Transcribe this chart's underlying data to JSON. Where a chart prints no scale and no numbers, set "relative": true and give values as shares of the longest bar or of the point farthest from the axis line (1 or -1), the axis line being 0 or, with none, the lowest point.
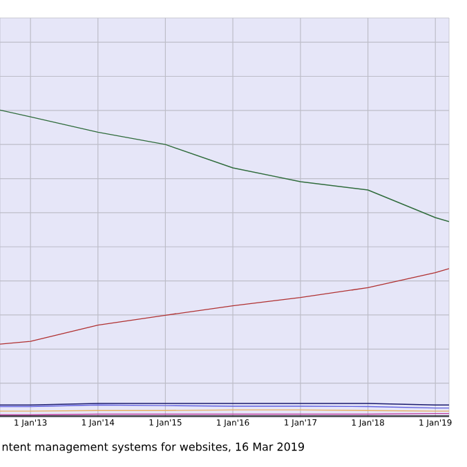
{
  "chart_data": {
    "type": "line",
    "relative": true,
    "grid": true,
    "tick_labels": "x",
    "marker": "none",
    "line_style": "solid",
    "x": [
      "2012-07-20",
      "2013-01-01",
      "2014-01-01",
      "2015-01-01",
      "2016-01-01",
      "2017-01-01",
      "2018-01-01",
      "2019-01-01",
      "2019-03-16"
    ],
    "xlim": [
      "2012-07-20",
      "2019-03-16"
    ],
    "xticks": [
      {
        "value": "2013-01-01",
        "label": "1 Jan'13"
      },
      {
        "value": "2014-01-01",
        "label": "1 Jan'14"
      },
      {
        "value": "2015-01-01",
        "label": "1 Jan'15"
      },
      {
        "value": "2016-01-01",
        "label": "1 Jan'16"
      },
      {
        "value": "2017-01-01",
        "label": "1 Jan'17"
      },
      {
        "value": "2018-01-01",
        "label": "1 Jan'18"
      },
      {
        "value": "2019-01-01",
        "label": "1 Jan'19"
      }
    ],
    "series": [
      {
        "color": "#2e6b3a",
        "values": [
          1,
          0.978,
          0.928,
          0.888,
          0.812,
          0.767,
          0.74,
          0.65,
          0.637
        ]
      },
      {
        "color": "#b03030",
        "values": [
          0.238,
          0.247,
          0.3,
          0.332,
          0.363,
          0.39,
          0.422,
          0.471,
          0.484
        ]
      },
      {
        "color": "#1a1a6e",
        "values": [
          0.04,
          0.04,
          0.045,
          0.045,
          0.045,
          0.045,
          0.045,
          0.04,
          0.04
        ]
      },
      {
        "color": "#6060e0",
        "values": [
          0.035,
          0.035,
          0.04,
          0.038,
          0.036,
          0.036,
          0.035,
          0.03,
          0.03
        ]
      },
      {
        "color": "#e8b060",
        "values": [
          0.02,
          0.02,
          0.022,
          0.022,
          0.024,
          0.024,
          0.022,
          0.02,
          0.02
        ]
      },
      {
        "color": "#c040a0",
        "values": [
          0.008,
          0.008,
          0.01,
          0.01,
          0.01,
          0.01,
          0.01,
          0.012,
          0.012
        ]
      },
      {
        "color": "#000000",
        "values": [
          0.004,
          0.004,
          0.004,
          0.004,
          0.004,
          0.004,
          0.004,
          0.004,
          0.004
        ]
      }
    ],
    "annotations": [
      "ntent management systems for websites, 16 Mar 2019"
    ]
  }
}
